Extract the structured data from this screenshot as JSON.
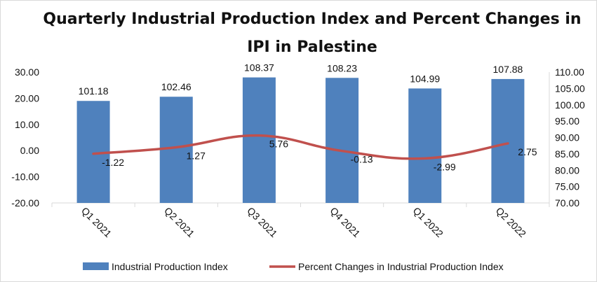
{
  "chart_data": {
    "type": "bar",
    "title_line1": "Quarterly Industrial Production Index and Percent Changes in",
    "title_line2": "IPI in Palestine",
    "categories": [
      "Q1 2021",
      "Q2 2021",
      "Q3 2021",
      "Q4 2021",
      "Q1 2022",
      "Q2 2022"
    ],
    "series": [
      {
        "name": "Industrial Production Index",
        "type": "bar",
        "axis": "right",
        "values": [
          101.18,
          102.46,
          108.37,
          108.23,
          104.99,
          107.88
        ],
        "labels": [
          "101.18",
          "102.46",
          "108.37",
          "108.23",
          "104.99",
          "107.88"
        ],
        "color": "#4f81bd"
      },
      {
        "name": "Percent Changes in Industrial Production Index",
        "type": "line",
        "axis": "left",
        "values": [
          -1.22,
          1.27,
          5.76,
          -0.13,
          -2.99,
          2.75
        ],
        "labels": [
          "-1.22",
          "1.27",
          "5.76",
          "-0.13",
          "-2.99",
          "2.75"
        ],
        "color": "#c0504d"
      }
    ],
    "y_left": {
      "min": -20,
      "max": 30,
      "ticks": [
        "30.00",
        "20.00",
        "10.00",
        "0.00",
        "-10.00",
        "-20.00"
      ]
    },
    "y_right": {
      "min": 70,
      "max": 110,
      "ticks": [
        "110.00",
        "105.00",
        "100.00",
        "95.00",
        "90.00",
        "85.00",
        "80.00",
        "75.00",
        "70.00"
      ]
    },
    "legend_position": "bottom",
    "grid": false
  }
}
